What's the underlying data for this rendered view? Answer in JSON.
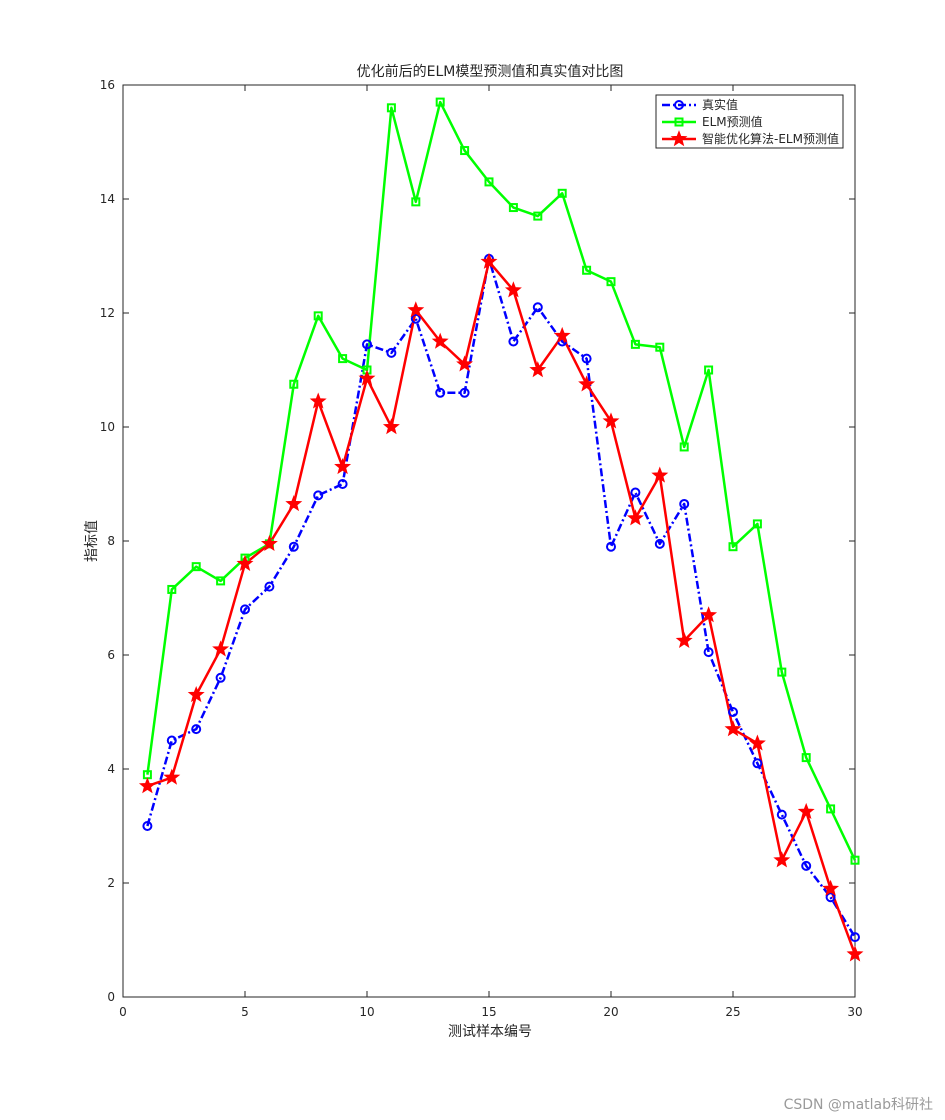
{
  "chart_data": {
    "type": "line",
    "title": "优化前后的ELM模型预测值和真实值对比图",
    "xlabel": "测试样本编号",
    "ylabel": "指标值",
    "xlim": [
      0,
      30
    ],
    "ylim": [
      0,
      16
    ],
    "xticks": [
      0,
      5,
      10,
      15,
      20,
      25,
      30
    ],
    "yticks": [
      0,
      2,
      4,
      6,
      8,
      10,
      12,
      14,
      16
    ],
    "grid": false,
    "legend_position": "top-right",
    "x": [
      1,
      2,
      3,
      4,
      5,
      6,
      7,
      8,
      9,
      10,
      11,
      12,
      13,
      14,
      15,
      16,
      17,
      18,
      19,
      20,
      21,
      22,
      23,
      24,
      25,
      26,
      27,
      28,
      29,
      30
    ],
    "series": [
      {
        "name": "真实值",
        "color": "#0000ff",
        "line_style": "dashdot",
        "marker": "circle",
        "values": [
          3.0,
          4.5,
          4.7,
          5.6,
          6.8,
          7.2,
          7.9,
          8.8,
          9.0,
          11.45,
          11.3,
          11.9,
          10.6,
          10.6,
          12.95,
          11.5,
          12.1,
          11.5,
          11.2,
          7.9,
          8.85,
          7.95,
          8.65,
          6.05,
          5.0,
          4.1,
          3.2,
          2.3,
          1.75,
          1.05
        ]
      },
      {
        "name": "ELM预测值",
        "color": "#00ff00",
        "line_style": "solid",
        "marker": "square",
        "values": [
          3.9,
          7.15,
          7.55,
          7.3,
          7.7,
          7.95,
          10.75,
          11.95,
          11.2,
          11.0,
          15.6,
          13.95,
          15.7,
          14.85,
          14.3,
          13.85,
          13.7,
          14.1,
          12.75,
          12.55,
          11.45,
          11.4,
          9.65,
          11.0,
          7.9,
          8.3,
          5.7,
          4.2,
          3.3,
          2.4
        ]
      },
      {
        "name": "智能优化算法-ELM预测值",
        "color": "#ff0000",
        "line_style": "solid",
        "marker": "star",
        "values": [
          3.7,
          3.85,
          5.3,
          6.1,
          7.6,
          7.95,
          8.65,
          10.45,
          9.3,
          10.85,
          10.0,
          12.05,
          11.5,
          11.1,
          12.9,
          12.4,
          11.0,
          11.6,
          10.75,
          10.1,
          8.4,
          9.15,
          6.25,
          6.7,
          4.7,
          4.45,
          2.4,
          3.25,
          1.9,
          0.75
        ]
      }
    ]
  },
  "watermark": "CSDN @matlab科研社"
}
